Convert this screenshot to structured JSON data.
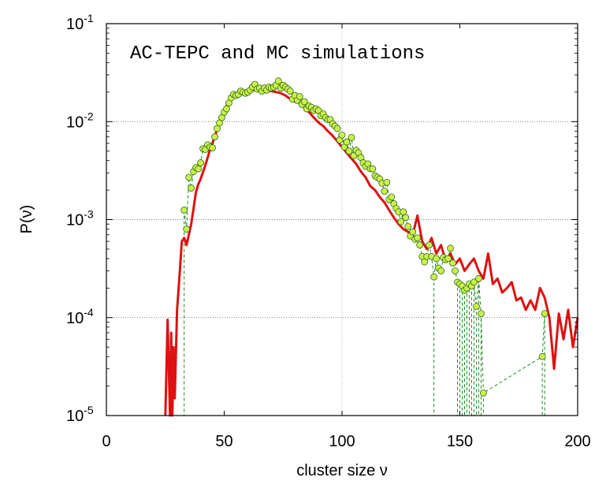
{
  "chart_data": {
    "type": "line",
    "title": "AC-TEPC and MC simulations",
    "xlabel": "cluster size ν",
    "ylabel": "P(ν)",
    "xlim": [
      0,
      200
    ],
    "ylim": [
      1e-05,
      0.1
    ],
    "yscale": "log",
    "x_ticks": [
      "0",
      "50",
      "100",
      "150",
      "200"
    ],
    "y_ticks": [
      {
        "base": "10",
        "exp": "-5"
      },
      {
        "base": "10",
        "exp": "-4"
      },
      {
        "base": "10",
        "exp": "-3"
      },
      {
        "base": "10",
        "exp": "-2"
      },
      {
        "base": "10",
        "exp": "-1"
      }
    ],
    "grid": "dotted horizontal lines at 1e-2, 1e-3, 1e-4; vertical line at 100",
    "colors": {
      "line": "#dd1111",
      "marker_fill": "#ccf04a",
      "marker_edge": "#2e6b1e",
      "dashed": "#1f8a1f"
    },
    "series": [
      {
        "style": "solid red line",
        "x": [
          25,
          26,
          27,
          27.5,
          28,
          28.5,
          29,
          30,
          31,
          32,
          33,
          34,
          35,
          36,
          37,
          38,
          39,
          40,
          42,
          44,
          46,
          48,
          50,
          52,
          54,
          56,
          58,
          60,
          62,
          64,
          66,
          68,
          70,
          72,
          74,
          76,
          78,
          80,
          82,
          84,
          86,
          88,
          90,
          92,
          94,
          96,
          98,
          100,
          102,
          104,
          106,
          108,
          110,
          112,
          114,
          116,
          118,
          120,
          122,
          124,
          126,
          128,
          130,
          132,
          134,
          136,
          138,
          140,
          142,
          144,
          146,
          148,
          150,
          152,
          154,
          156,
          158,
          160,
          162,
          164,
          166,
          168,
          170,
          172,
          174,
          176,
          178,
          180,
          182,
          184,
          186,
          188,
          190,
          192,
          194,
          196,
          198,
          200
        ],
        "y": [
          1e-05,
          9.5e-05,
          1e-05,
          7e-05,
          1e-05,
          5e-05,
          1.5e-05,
          0.00012,
          0.00026,
          0.0006,
          0.00065,
          0.00055,
          0.0007,
          0.0009,
          0.0013,
          0.0019,
          0.0023,
          0.0026,
          0.0036,
          0.0052,
          0.007,
          0.01,
          0.013,
          0.016,
          0.018,
          0.019,
          0.02,
          0.0205,
          0.021,
          0.021,
          0.0205,
          0.021,
          0.0205,
          0.02,
          0.0195,
          0.0185,
          0.017,
          0.016,
          0.0155,
          0.014,
          0.0125,
          0.011,
          0.0098,
          0.009,
          0.008,
          0.0072,
          0.0063,
          0.0055,
          0.0048,
          0.0042,
          0.0037,
          0.0031,
          0.0027,
          0.0022,
          0.002,
          0.0017,
          0.0015,
          0.00125,
          0.00105,
          0.0009,
          0.0008,
          0.00075,
          0.0007,
          0.0011,
          0.0006,
          0.0005,
          0.00065,
          0.00045,
          0.00055,
          0.00038,
          0.00045,
          0.00035,
          0.0004,
          0.0003,
          0.00035,
          0.0004,
          0.0003,
          0.00025,
          0.00045,
          0.00022,
          0.00025,
          0.00018,
          0.0002,
          0.00023,
          0.00015,
          0.00016,
          0.00012,
          0.00015,
          0.00012,
          0.0002,
          0.00016,
          0.0001,
          3e-05,
          0.00011,
          6e-05,
          0.00012,
          5e-05,
          0.0001
        ]
      },
      {
        "style": "light-green circles with dashed green line",
        "x": [
          33,
          34,
          35,
          36,
          37,
          38,
          39,
          40,
          41,
          42,
          43,
          44,
          45,
          46,
          47,
          48,
          49,
          50,
          51,
          52,
          53,
          54,
          55,
          56,
          57,
          58,
          59,
          60,
          61,
          62,
          63,
          64,
          65,
          66,
          67,
          68,
          69,
          70,
          71,
          72,
          73,
          74,
          75,
          76,
          77,
          78,
          79,
          80,
          81,
          82,
          83,
          84,
          85,
          86,
          87,
          88,
          89,
          90,
          91,
          92,
          93,
          94,
          95,
          96,
          97,
          98,
          99,
          100,
          101,
          102,
          103,
          104,
          105,
          106,
          107,
          108,
          109,
          110,
          111,
          112,
          113,
          114,
          115,
          116,
          117,
          118,
          119,
          120,
          121,
          122,
          123,
          124,
          125,
          126,
          127,
          128,
          129,
          130,
          131,
          132,
          133,
          134,
          135,
          136,
          137,
          138,
          139,
          140,
          141,
          142,
          143,
          144,
          145,
          146,
          147,
          148,
          149,
          150,
          151,
          152,
          153,
          154,
          155,
          156,
          157,
          158,
          159,
          160,
          185,
          186
        ],
        "y": [
          0.00125,
          0.0008,
          0.0027,
          0.0021,
          0.0031,
          0.0034,
          0.0033,
          0.0038,
          0.0053,
          0.0052,
          0.0058,
          0.0055,
          0.0054,
          0.007,
          0.0085,
          0.0097,
          0.011,
          0.0125,
          0.0135,
          0.0155,
          0.0175,
          0.019,
          0.0185,
          0.019,
          0.0205,
          0.02,
          0.0195,
          0.02,
          0.021,
          0.0225,
          0.024,
          0.0215,
          0.022,
          0.0205,
          0.022,
          0.021,
          0.0225,
          0.022,
          0.0225,
          0.0235,
          0.026,
          0.022,
          0.0235,
          0.0225,
          0.0215,
          0.0205,
          0.017,
          0.0185,
          0.0165,
          0.018,
          0.015,
          0.016,
          0.0135,
          0.0145,
          0.014,
          0.013,
          0.0135,
          0.013,
          0.0115,
          0.012,
          0.011,
          0.0105,
          0.0105,
          0.0095,
          0.009,
          0.0085,
          0.0065,
          0.0073,
          0.0055,
          0.0062,
          0.005,
          0.0069,
          0.0045,
          0.0051,
          0.0048,
          0.0043,
          0.0038,
          0.0035,
          0.0037,
          0.0033,
          0.0033,
          0.0028,
          0.0027,
          0.0026,
          0.00235,
          0.00195,
          0.0024,
          0.0016,
          0.0017,
          0.00145,
          0.0013,
          0.0012,
          0.00095,
          0.0012,
          0.00105,
          0.00085,
          0.00068,
          0.00075,
          0.00063,
          0.00065,
          0.00055,
          0.00042,
          0.00037,
          0.00042,
          0.00055,
          0.00042,
          0.00026,
          0.0004,
          0.00032,
          0.0003,
          0.00041,
          0.00039,
          0.0004,
          0.00051,
          0.00036,
          0.0003,
          0.00023,
          0.00022,
          0.00021,
          0.00019,
          0.0002,
          0.00022,
          0.00021,
          0.00023,
          0.00013,
          0.00025,
          0.00011,
          1.7e-05,
          4e-05,
          0.00011
        ]
      }
    ]
  }
}
